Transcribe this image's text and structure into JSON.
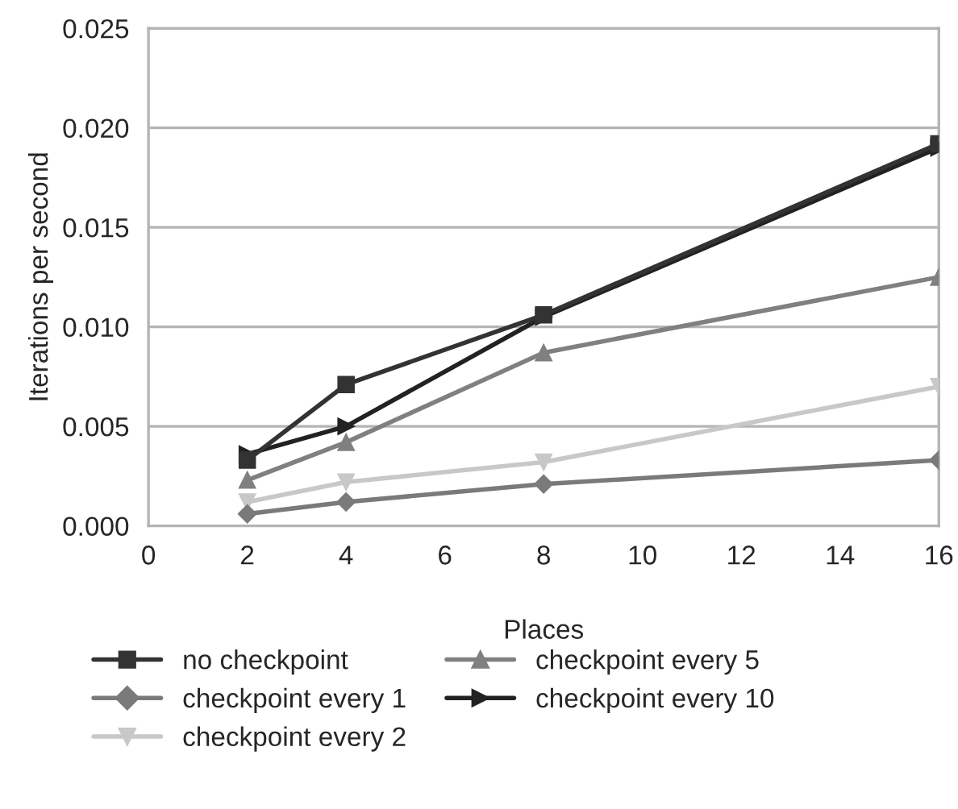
{
  "chart_data": {
    "type": "line",
    "xlabel": "Places",
    "ylabel": "Iterations per second",
    "x": [
      2,
      4,
      8,
      16
    ],
    "series": [
      {
        "name": "no checkpoint",
        "color": "#333333",
        "marker": "square",
        "values": [
          0.0033,
          0.0071,
          0.0106,
          0.0192
        ]
      },
      {
        "name": "checkpoint every 1",
        "color": "#7a7a7a",
        "marker": "diamond",
        "values": [
          0.0006,
          0.0012,
          0.0021,
          0.0033
        ]
      },
      {
        "name": "checkpoint every 2",
        "color": "#c8c8c8",
        "marker": "triangle_down",
        "values": [
          0.0012,
          0.0022,
          0.0032,
          0.007
        ]
      },
      {
        "name": "checkpoint every 5",
        "color": "#808080",
        "marker": "triangle",
        "values": [
          0.0023,
          0.0042,
          0.0087,
          0.0125
        ]
      },
      {
        "name": "checkpoint every 10",
        "color": "#222222",
        "marker": "triangle_right",
        "values": [
          0.0036,
          0.005,
          0.0105,
          0.019
        ]
      }
    ],
    "xlim": [
      0,
      16
    ],
    "xticks": [
      0,
      2,
      4,
      6,
      8,
      10,
      12,
      14,
      16
    ],
    "ylim": [
      0,
      0.025
    ],
    "yticks": [
      {
        "value": 0,
        "label": "0.000"
      },
      {
        "value": 0.005,
        "label": "0.005"
      },
      {
        "value": 0.01,
        "label": "0.010"
      },
      {
        "value": 0.015,
        "label": "0.015"
      },
      {
        "value": 0.02,
        "label": "0.020"
      },
      {
        "value": 0.025,
        "label": "0.025"
      }
    ],
    "grid": "y",
    "legend": "bottom",
    "line_style": "solid"
  }
}
